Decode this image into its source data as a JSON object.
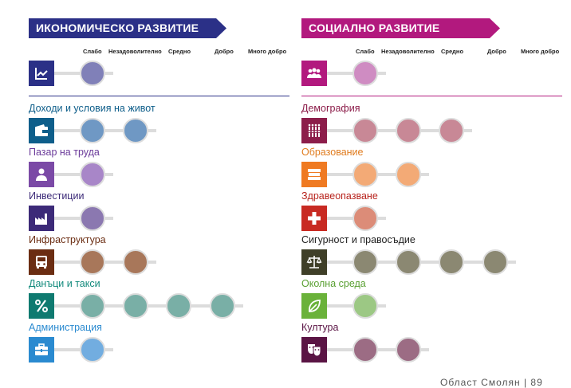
{
  "economic": {
    "title": "ИКОНОМИЧЕСКО РАЗВИТИЕ",
    "accent": "#2b3087",
    "scale_labels": [
      "Слабо",
      "Незадоволително",
      "Средно",
      "Добро",
      "Много добро"
    ],
    "overall": {
      "icon": "line-chart-icon",
      "icon_color": "#2b3087",
      "level": 1,
      "dot_color": "#8080b8"
    },
    "indicators": [
      {
        "label": "Доходи и условия на живот",
        "label_color": "#0e5e8a",
        "icon": "wallet-icon",
        "icon_color": "#0e5e8a",
        "level": 2,
        "dot_color": "#6f98c4"
      },
      {
        "label": "Пазар на труда",
        "label_color": "#6b3b9a",
        "icon": "worker-icon",
        "icon_color": "#7b4aa6",
        "level": 1,
        "dot_color": "#a886c8"
      },
      {
        "label": "Инвестиции",
        "label_color": "#3c2a78",
        "icon": "factory-icon",
        "icon_color": "#3c2a78",
        "level": 1,
        "dot_color": "#8b78b0"
      },
      {
        "label": "Инфраструктура",
        "label_color": "#6b2d12",
        "icon": "bus-icon",
        "icon_color": "#6b2d12",
        "level": 2,
        "dot_color": "#a8775a"
      },
      {
        "label": "Данъци и такси",
        "label_color": "#128a7c",
        "icon": "percent-icon",
        "icon_color": "#0f7a70",
        "level": 4,
        "dot_color": "#79afa6"
      },
      {
        "label": "Администрация",
        "label_color": "#2a8ad0",
        "icon": "briefcase-icon",
        "icon_color": "#2a8ad0",
        "level": 1,
        "dot_color": "#72ade0"
      }
    ]
  },
  "social": {
    "title": "СОЦИАЛНО РАЗВИТИЕ",
    "accent": "#b2197e",
    "scale_labels": [
      "Слабо",
      "Незадоволително",
      "Средно",
      "Добро",
      "Много добро"
    ],
    "overall": {
      "icon": "people-icon",
      "icon_color": "#b2197e",
      "level": 1,
      "dot_color": "#cf8cc2"
    },
    "indicators": [
      {
        "label": "Демография",
        "label_color": "#8c1d4a",
        "icon": "population-icon",
        "icon_color": "#8c1d4a",
        "level": 3,
        "dot_color": "#c88896"
      },
      {
        "label": "Образование",
        "label_color": "#e07c1f",
        "icon": "books-icon",
        "icon_color": "#ef7a22",
        "level": 2,
        "dot_color": "#f3aa76"
      },
      {
        "label": "Здравеопазване",
        "label_color": "#b8241e",
        "icon": "health-cross-icon",
        "icon_color": "#c82a22",
        "level": 1,
        "dot_color": "#dc8c78"
      },
      {
        "label": "Сигурност и правосъдие",
        "label_color": "#222222",
        "icon": "scales-icon",
        "icon_color": "#3f3f28",
        "level": 4,
        "dot_color": "#8b8872"
      },
      {
        "label": "Околна среда",
        "label_color": "#5aa032",
        "icon": "leaf-icon",
        "icon_color": "#6ab23a",
        "level": 1,
        "dot_color": "#9cc884"
      },
      {
        "label": "Култура",
        "label_color": "#5a1444",
        "icon": "masks-icon",
        "icon_color": "#5a1444",
        "level": 2,
        "dot_color": "#9c6c84"
      }
    ]
  },
  "footer": {
    "text": "Област Смолян | 89"
  }
}
